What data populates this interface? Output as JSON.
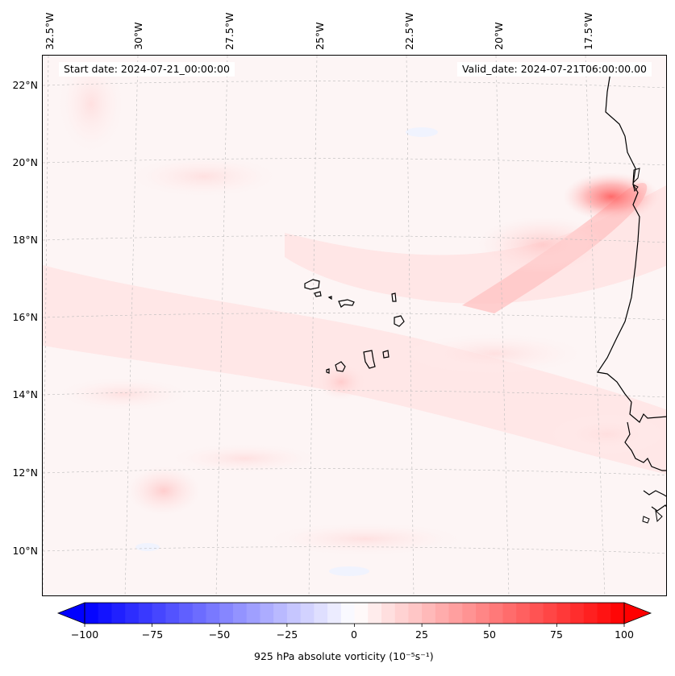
{
  "map": {
    "header": {
      "start_date": "Start date: 2024-07-21_00:00:00",
      "valid_date": "Valid_date: 2024-07-21T06:00:00.00"
    },
    "lon_labels": [
      "32.5°W",
      "30°W",
      "27.5°W",
      "25°W",
      "22.5°W",
      "20°W",
      "17.5°W"
    ],
    "lat_labels": [
      "22°N",
      "20°N",
      "18°N",
      "16°N",
      "14°N",
      "12°N",
      "10°N"
    ],
    "colors": {
      "coast": "#000000",
      "grid": "#bbbbbb",
      "positive": "#ff0000",
      "negative": "#0000ff"
    }
  },
  "colorbar": {
    "label": "925 hPa absolute vorticity (10⁻⁵s⁻¹)",
    "ticks": [
      "−100",
      "−75",
      "−50",
      "−25",
      "0",
      "25",
      "50",
      "75",
      "100"
    ],
    "range": [
      -100,
      100
    ],
    "levels": 40
  }
}
